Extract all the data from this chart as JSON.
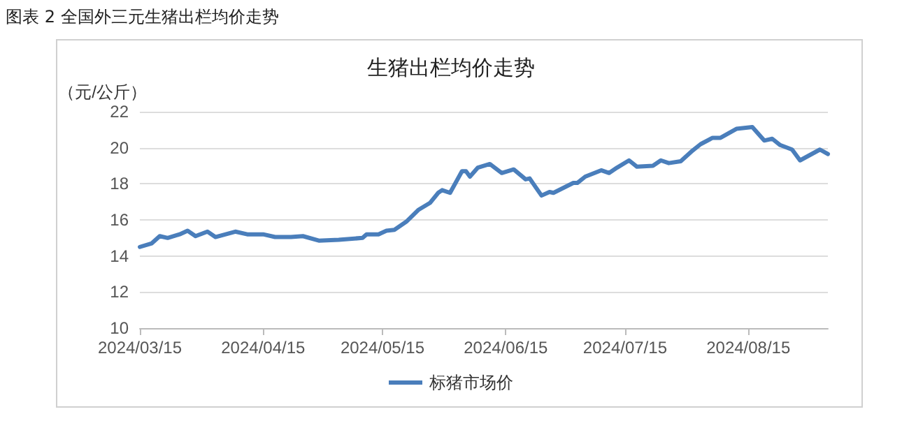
{
  "chart_data": {
    "type": "line",
    "title": "生猪出栏均价走势",
    "ylabel": "（元/公斤）",
    "annotations": [
      "图表 2  全国外三元生猪出栏均价走势"
    ],
    "x": [
      "2024-03-15",
      "2024-03-18",
      "2024-03-20",
      "2024-03-22",
      "2024-03-25",
      "2024-03-27",
      "2024-03-29",
      "2024-04-01",
      "2024-04-03",
      "2024-04-08",
      "2024-04-11",
      "2024-04-15",
      "2024-04-18",
      "2024-04-22",
      "2024-04-25",
      "2024-04-29",
      "2024-05-04",
      "2024-05-10",
      "2024-05-11",
      "2024-05-14",
      "2024-05-16",
      "2024-05-18",
      "2024-05-21",
      "2024-05-24",
      "2024-05-27",
      "2024-05-29",
      "2024-05-30",
      "2024-06-01",
      "2024-06-04",
      "2024-06-05",
      "2024-06-06",
      "2024-06-08",
      "2024-06-11",
      "2024-06-14",
      "2024-06-17",
      "2024-06-20",
      "2024-06-21",
      "2024-06-24",
      "2024-06-26",
      "2024-06-27",
      "2024-07-02",
      "2024-07-03",
      "2024-07-05",
      "2024-07-09",
      "2024-07-11",
      "2024-07-13",
      "2024-07-16",
      "2024-07-18",
      "2024-07-22",
      "2024-07-24",
      "2024-07-26",
      "2024-07-29",
      "2024-08-01",
      "2024-08-03",
      "2024-08-06",
      "2024-08-08",
      "2024-08-12",
      "2024-08-16",
      "2024-08-19",
      "2024-08-21",
      "2024-08-23",
      "2024-08-26",
      "2024-08-28",
      "2024-09-02",
      "2024-09-04"
    ],
    "series": [
      {
        "name": "标猪市场价",
        "color": "#4a7ebb",
        "values": [
          14.5,
          14.7,
          15.1,
          15.0,
          15.2,
          15.4,
          15.1,
          15.35,
          15.05,
          15.35,
          15.2,
          15.2,
          15.05,
          15.05,
          15.1,
          14.85,
          14.9,
          15.0,
          15.2,
          15.2,
          15.4,
          15.45,
          15.9,
          16.55,
          16.95,
          17.5,
          17.65,
          17.5,
          18.7,
          18.7,
          18.4,
          18.9,
          19.1,
          18.6,
          18.8,
          18.25,
          18.3,
          17.35,
          17.55,
          17.5,
          18.05,
          18.05,
          18.4,
          18.75,
          18.6,
          18.9,
          19.3,
          18.95,
          19.0,
          19.3,
          19.15,
          19.25,
          19.85,
          20.2,
          20.55,
          20.55,
          21.05,
          21.15,
          20.4,
          20.5,
          20.15,
          19.9,
          19.3,
          19.9,
          19.65
        ]
      }
    ],
    "xlim": [
      "2024-03-15",
      "2024-09-04"
    ],
    "xticks": [
      {
        "value": "2024-03-15",
        "label": "2024/03/15"
      },
      {
        "value": "2024-04-15",
        "label": "2024/04/15"
      },
      {
        "value": "2024-05-15",
        "label": "2024/05/15"
      },
      {
        "value": "2024-06-15",
        "label": "2024/06/15"
      },
      {
        "value": "2024-07-15",
        "label": "2024/07/15"
      },
      {
        "value": "2024-08-15",
        "label": "2024/08/15"
      }
    ],
    "ylim": [
      10,
      22
    ],
    "yticks": [
      10,
      12,
      14,
      16,
      18,
      20,
      22
    ],
    "grid": "y",
    "legend": "bottom",
    "marker": "none",
    "line_style": "solid"
  }
}
